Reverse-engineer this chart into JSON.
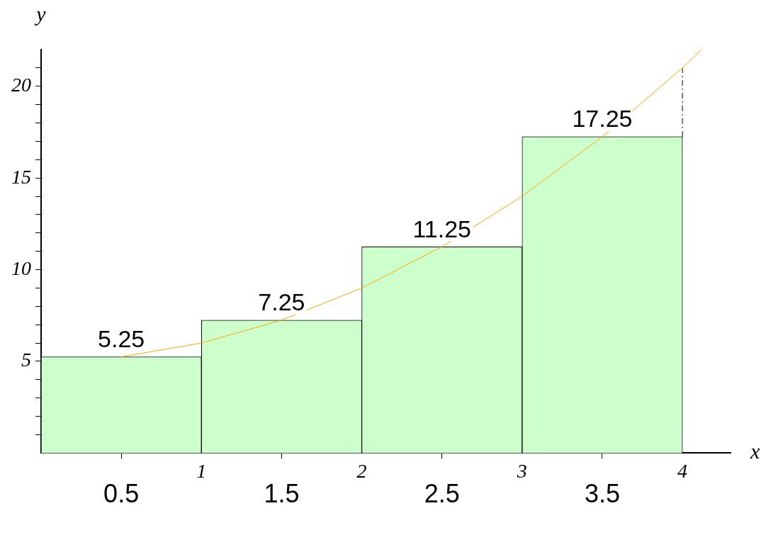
{
  "chart_data": {
    "type": "histogram",
    "xlabel": "x",
    "ylabel": "y",
    "bins": [
      0,
      1,
      2,
      3,
      4
    ],
    "series": [
      {
        "type": "histogram",
        "color": "#ccffcc",
        "values": [
          5.25,
          7.25,
          11.25,
          17.25
        ],
        "value_labels": [
          "5.25",
          "7.25",
          "11.25",
          "17.25"
        ]
      },
      {
        "type": "line",
        "color": "#ffa500",
        "x": [
          0.5,
          1,
          1.5,
          2,
          2.5,
          3,
          3.5,
          4,
          4.12
        ],
        "values": [
          5.25,
          6,
          7.25,
          9,
          11.25,
          14,
          17.25,
          21,
          22
        ]
      },
      {
        "type": "line",
        "color": "#000000",
        "line_style": "dashed",
        "x": [
          4,
          4
        ],
        "values": [
          17.25,
          21
        ]
      }
    ],
    "xlim": [
      0,
      4.3
    ],
    "ylim": [
      0,
      22
    ],
    "xticks": [
      1,
      2,
      3,
      4
    ],
    "yticks": [
      {
        "value": 1,
        "label": null
      },
      {
        "value": 2,
        "label": null
      },
      {
        "value": 3,
        "label": null
      },
      {
        "value": 4,
        "label": null
      },
      5,
      {
        "value": 6,
        "label": null
      },
      {
        "value": 7,
        "label": null
      },
      {
        "value": 8,
        "label": null
      },
      {
        "value": 9,
        "label": null
      },
      10,
      {
        "value": 11,
        "label": null
      },
      {
        "value": 12,
        "label": null
      },
      {
        "value": 13,
        "label": null
      },
      {
        "value": 14,
        "label": null
      },
      15,
      {
        "value": 16,
        "label": null
      },
      {
        "value": 17,
        "label": null
      },
      {
        "value": 18,
        "label": null
      },
      {
        "value": 19,
        "label": null
      },
      20,
      {
        "value": 21,
        "label": null
      }
    ],
    "grid": false,
    "legend": false,
    "annotations": [
      {
        "text": "0.5",
        "x": 0.5,
        "y": 0
      },
      {
        "text": "1.5",
        "x": 1.5,
        "y": 0
      },
      {
        "text": "2.5",
        "x": 2.5,
        "y": 0
      },
      {
        "text": "3.5",
        "x": 3.5,
        "y": 0
      }
    ]
  }
}
